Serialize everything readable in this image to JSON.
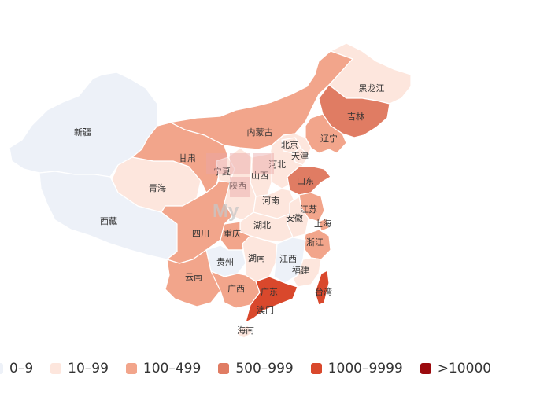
{
  "legend": [
    {
      "label": "0–9",
      "color": "#edf1f8"
    },
    {
      "label": "10–99",
      "color": "#fde6dd"
    },
    {
      "label": "100–499",
      "color": "#f2a58b"
    },
    {
      "label": "500–999",
      "color": "#e07c63"
    },
    {
      "label": "1000–9999",
      "color": "#d9482c"
    },
    {
      "label": ">10000",
      "color": "#9b0a0e"
    }
  ],
  "provinces": {
    "xinjiang": "新疆",
    "xizang": "西藏",
    "qinghai": "青海",
    "gansu": "甘肃",
    "neimenggu": "内蒙古",
    "heilongjiang": "黑龙江",
    "jilin": "吉林",
    "liaoning": "辽宁",
    "beijing": "北京",
    "tianjin": "天津",
    "hebei": "河北",
    "shanxi": "山西",
    "ningxia": "宁夏",
    "shaanxi": "陕西",
    "shandong": "山东",
    "henan": "河南",
    "jiangsu": "江苏",
    "anhui": "安徽",
    "shanghai": "上海",
    "hubei": "湖北",
    "sichuan": "四川",
    "chongqing": "重庆",
    "zhejiang": "浙江",
    "guizhou": "贵州",
    "hunan": "湖南",
    "jiangxi": "江西",
    "fujian": "福建",
    "yunnan": "云南",
    "guangxi": "广西",
    "guangdong": "广东",
    "taiwan": "台湾",
    "aomen": "澳门",
    "hainan": "海南"
  },
  "watermark": "My"
}
